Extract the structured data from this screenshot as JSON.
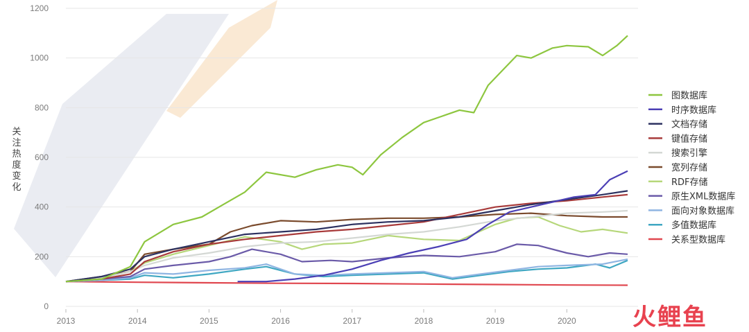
{
  "watermark": "火鲤鱼",
  "colors": {
    "grid": "#e6e6e6",
    "axis_text": "#7a7a7a"
  },
  "chart_data": {
    "type": "line",
    "title": "",
    "xlabel": "",
    "ylabel": "关注热度变化",
    "xlim": [
      2013,
      2020.85
    ],
    "ylim": [
      0,
      1200
    ],
    "xticks": [
      "2013",
      "2014",
      "2015",
      "2016",
      "2017",
      "2018",
      "2019",
      "2020"
    ],
    "yticks": [
      "0",
      "200",
      "400",
      "600",
      "800",
      "1000",
      "1200"
    ],
    "grid": true,
    "legend_position": "right",
    "series": [
      {
        "name": "图数据库",
        "color": "#8dc63f",
        "x": [
          2013,
          2013.5,
          2013.9,
          2014.1,
          2014.5,
          2014.9,
          2015.2,
          2015.5,
          2015.8,
          2016.2,
          2016.5,
          2016.8,
          2017.0,
          2017.15,
          2017.4,
          2017.7,
          2018.0,
          2018.3,
          2018.5,
          2018.7,
          2018.9,
          2019.1,
          2019.3,
          2019.5,
          2019.8,
          2020.0,
          2020.3,
          2020.5,
          2020.7,
          2020.85
        ],
        "y": [
          100,
          110,
          160,
          260,
          330,
          360,
          410,
          460,
          540,
          520,
          550,
          570,
          560,
          530,
          610,
          680,
          740,
          770,
          790,
          780,
          890,
          950,
          1010,
          1000,
          1040,
          1050,
          1045,
          1010,
          1050,
          1090
        ]
      },
      {
        "name": "时序数据库",
        "color": "#4b3fb5",
        "x": [
          2015.4,
          2015.8,
          2016.2,
          2016.6,
          2017.0,
          2017.4,
          2017.8,
          2018.2,
          2018.6,
          2018.9,
          2019.2,
          2019.5,
          2019.8,
          2020.1,
          2020.4,
          2020.6,
          2020.85
        ],
        "y": [
          100,
          100,
          110,
          125,
          150,
          185,
          215,
          240,
          270,
          330,
          380,
          400,
          420,
          440,
          450,
          510,
          545
        ]
      },
      {
        "name": "文档存储",
        "color": "#2c3160",
        "x": [
          2013,
          2013.5,
          2013.9,
          2014.1,
          2014.5,
          2015.0,
          2015.5,
          2016.0,
          2016.5,
          2017.0,
          2017.5,
          2018.0,
          2018.5,
          2019.0,
          2019.5,
          2020.0,
          2020.5,
          2020.85
        ],
        "y": [
          100,
          120,
          150,
          200,
          230,
          260,
          290,
          300,
          310,
          330,
          340,
          345,
          360,
          385,
          410,
          430,
          450,
          465
        ]
      },
      {
        "name": "键值存储",
        "color": "#a83a3a",
        "x": [
          2013,
          2013.5,
          2013.9,
          2014.1,
          2014.5,
          2015.0,
          2015.5,
          2016.0,
          2016.5,
          2017.0,
          2017.5,
          2018.0,
          2018.5,
          2019.0,
          2019.5,
          2020.0,
          2020.5,
          2020.85
        ],
        "y": [
          100,
          110,
          130,
          180,
          220,
          250,
          270,
          285,
          300,
          310,
          325,
          340,
          370,
          400,
          415,
          425,
          440,
          450
        ]
      },
      {
        "name": "搜索引擎",
        "color": "#d4d8d4",
        "x": [
          2013,
          2013.5,
          2013.9,
          2014.1,
          2014.5,
          2015.0,
          2015.5,
          2016.0,
          2016.5,
          2017.0,
          2017.5,
          2018.0,
          2018.5,
          2019.0,
          2019.5,
          2020.0,
          2020.5,
          2020.85
        ],
        "y": [
          100,
          115,
          140,
          165,
          195,
          215,
          240,
          255,
          260,
          275,
          290,
          300,
          320,
          345,
          360,
          375,
          380,
          385
        ]
      },
      {
        "name": "宽列存储",
        "color": "#7a4a2c",
        "x": [
          2013,
          2013.5,
          2013.9,
          2014.1,
          2014.5,
          2015.0,
          2015.3,
          2015.6,
          2016.0,
          2016.5,
          2017.0,
          2017.5,
          2018.0,
          2018.5,
          2019.0,
          2019.5,
          2020.0,
          2020.5,
          2020.85
        ],
        "y": [
          100,
          120,
          140,
          210,
          230,
          250,
          300,
          325,
          345,
          340,
          350,
          355,
          355,
          360,
          370,
          375,
          365,
          360,
          360
        ]
      },
      {
        "name": "RDF存储",
        "color": "#b6d77a",
        "x": [
          2013,
          2013.5,
          2013.9,
          2014.1,
          2014.5,
          2015.0,
          2015.5,
          2016.0,
          2016.3,
          2016.6,
          2017.0,
          2017.5,
          2018.0,
          2018.5,
          2019.0,
          2019.3,
          2019.6,
          2019.9,
          2020.2,
          2020.5,
          2020.85
        ],
        "y": [
          100,
          115,
          140,
          175,
          210,
          245,
          280,
          260,
          230,
          250,
          255,
          285,
          270,
          265,
          330,
          355,
          360,
          325,
          300,
          310,
          295
        ]
      },
      {
        "name": "原生XML数据库",
        "color": "#6a5aa8",
        "x": [
          2013,
          2013.5,
          2013.9,
          2014.1,
          2014.5,
          2015.0,
          2015.3,
          2015.6,
          2016.0,
          2016.3,
          2016.7,
          2017.0,
          2017.5,
          2018.0,
          2018.5,
          2019.0,
          2019.3,
          2019.6,
          2020.0,
          2020.3,
          2020.6,
          2020.85
        ],
        "y": [
          100,
          110,
          120,
          150,
          165,
          180,
          200,
          230,
          210,
          180,
          185,
          180,
          195,
          205,
          200,
          220,
          250,
          245,
          215,
          200,
          215,
          210
        ]
      },
      {
        "name": "面向对象数据库",
        "color": "#8fb5e2",
        "x": [
          2013,
          2013.5,
          2013.9,
          2014.1,
          2014.5,
          2015.0,
          2015.5,
          2015.8,
          2016.2,
          2016.6,
          2017.0,
          2017.5,
          2018.0,
          2018.4,
          2018.8,
          2019.2,
          2019.6,
          2020.0,
          2020.5,
          2020.85
        ],
        "y": [
          100,
          105,
          115,
          135,
          130,
          145,
          155,
          170,
          130,
          125,
          130,
          135,
          140,
          115,
          130,
          145,
          160,
          165,
          170,
          190
        ]
      },
      {
        "name": "多值数据库",
        "color": "#3fa7c2",
        "x": [
          2013,
          2013.5,
          2013.9,
          2014.1,
          2014.5,
          2015.0,
          2015.5,
          2015.8,
          2016.2,
          2016.6,
          2017.0,
          2017.5,
          2018.0,
          2018.4,
          2018.8,
          2019.2,
          2019.6,
          2020.0,
          2020.4,
          2020.6,
          2020.85
        ],
        "y": [
          100,
          105,
          110,
          125,
          115,
          130,
          150,
          160,
          130,
          120,
          125,
          130,
          135,
          110,
          125,
          140,
          150,
          155,
          170,
          155,
          185
        ]
      },
      {
        "name": "关系型数据库",
        "color": "#e0474f",
        "x": [
          2013,
          2014,
          2015,
          2016,
          2017,
          2018,
          2019,
          2020,
          2020.85
        ],
        "y": [
          100,
          97,
          95,
          93,
          92,
          90,
          88,
          86,
          85
        ]
      }
    ]
  }
}
